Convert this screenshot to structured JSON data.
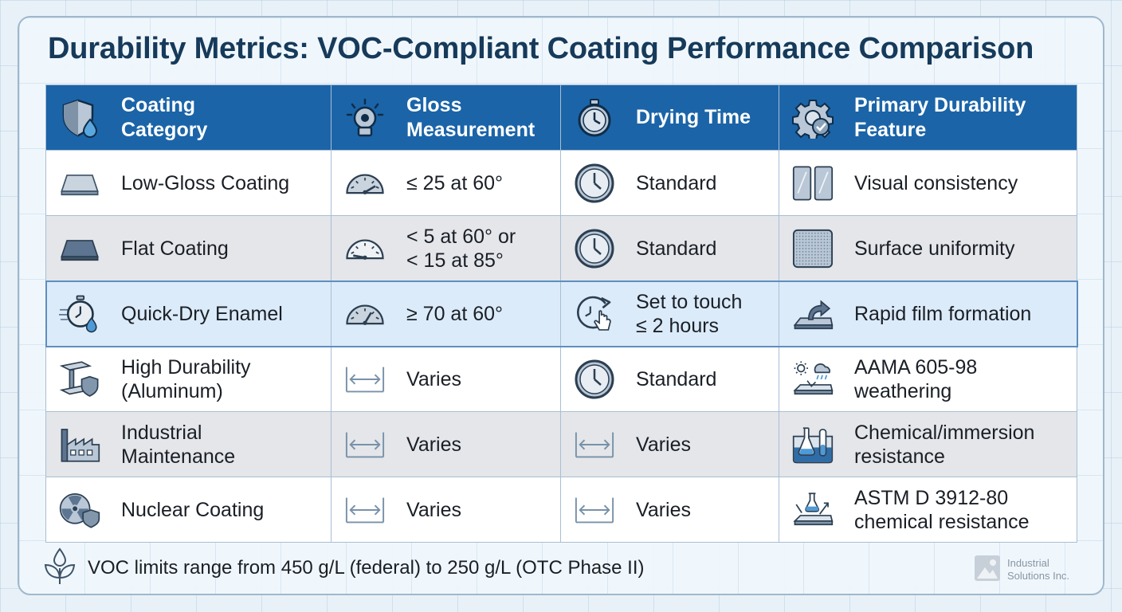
{
  "title": "Durability Metrics: VOC-Compliant Coating Performance Comparison",
  "columns": [
    {
      "line1": "Coating",
      "line2": "Category",
      "icon": "shield-droplet-icon"
    },
    {
      "line1": "Gloss",
      "line2": "Measurement",
      "icon": "gloss-meter-icon"
    },
    {
      "line1": "Drying Time",
      "line2": "",
      "icon": "stopwatch-icon"
    },
    {
      "line1": "Primary Durability",
      "line2": "Feature",
      "icon": "gear-check-icon"
    }
  ],
  "rows": [
    {
      "category": {
        "line1": "Low-Gloss Coating",
        "line2": "",
        "icon": "panel-icon"
      },
      "gloss": {
        "line1": "≤ 25 at 60°",
        "line2": "",
        "icon": "gauge-icon"
      },
      "drying": {
        "line1": "Standard",
        "line2": "",
        "icon": "clock-icon"
      },
      "feature": {
        "line1": "Visual consistency",
        "line2": "",
        "icon": "twin-panels-icon"
      }
    },
    {
      "category": {
        "line1": "Flat Coating",
        "line2": "",
        "icon": "flat-panel-icon"
      },
      "gloss": {
        "line1": "< 5 at 60° or",
        "line2": "< 15 at 85°",
        "icon": "gauge-low-icon"
      },
      "drying": {
        "line1": "Standard",
        "line2": "",
        "icon": "clock-icon"
      },
      "feature": {
        "line1": "Surface uniformity",
        "line2": "",
        "icon": "textured-square-icon"
      }
    },
    {
      "category": {
        "line1": "Quick-Dry Enamel",
        "line2": "",
        "icon": "fast-stopwatch-icon"
      },
      "gloss": {
        "line1": "≥ 70 at 60°",
        "line2": "",
        "icon": "gauge-high-icon"
      },
      "drying": {
        "line1": "Set to touch",
        "line2": "≤ 2 hours",
        "icon": "touch-clock-icon"
      },
      "feature": {
        "line1": "Rapid film formation",
        "line2": "",
        "icon": "film-arrow-icon"
      }
    },
    {
      "category": {
        "line1": "High Durability",
        "line2": "(Aluminum)",
        "icon": "beam-shield-icon"
      },
      "gloss": {
        "line1": "Varies",
        "line2": "",
        "icon": "range-arrows-icon"
      },
      "drying": {
        "line1": "Standard",
        "line2": "",
        "icon": "clock-icon"
      },
      "feature": {
        "line1": "AAMA 605-98",
        "line2": "weathering",
        "icon": "weather-icon"
      }
    },
    {
      "category": {
        "line1": "Industrial",
        "line2": "Maintenance",
        "icon": "factory-icon"
      },
      "gloss": {
        "line1": "Varies",
        "line2": "",
        "icon": "range-arrows-icon"
      },
      "drying": {
        "line1": "Varies",
        "line2": "",
        "icon": "range-arrows-icon"
      },
      "feature": {
        "line1": "Chemical/immersion",
        "line2": "resistance",
        "icon": "lab-tank-icon"
      }
    },
    {
      "category": {
        "line1": "Nuclear Coating",
        "line2": "",
        "icon": "radiation-shield-icon"
      },
      "gloss": {
        "line1": "Varies",
        "line2": "",
        "icon": "range-arrows-icon"
      },
      "drying": {
        "line1": "Varies",
        "line2": "",
        "icon": "range-arrows-icon"
      },
      "feature": {
        "line1": "ASTM D 3912-80",
        "line2": "chemical resistance",
        "icon": "flask-surface-icon"
      }
    }
  ],
  "footer": {
    "text": "VOC limits range from 450 g/L (federal) to 250 g/L (OTC Phase II)",
    "icon": "leaf-droplet-icon"
  },
  "brand": {
    "line1": "Industrial",
    "line2": "Solutions Inc.",
    "icon": "logo-icon"
  },
  "colors": {
    "header": "#1b64a8",
    "highlight_row": "#dcebfa",
    "alt_row": "#e4e6ea",
    "title": "#163a5a"
  }
}
